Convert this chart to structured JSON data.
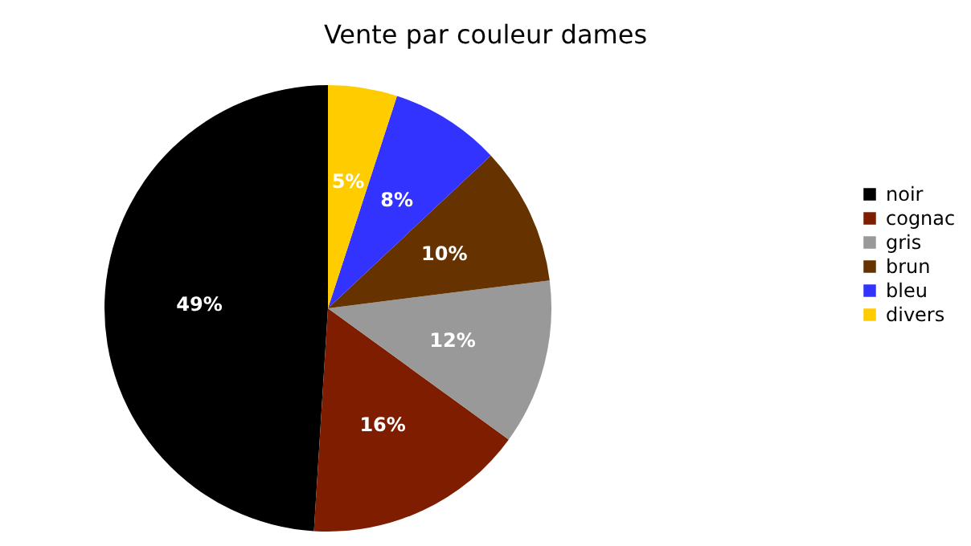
{
  "chart_data": {
    "type": "pie",
    "title": "Vente par couleur dames",
    "categories": [
      "noir",
      "cognac",
      "gris",
      "brun",
      "bleu",
      "divers"
    ],
    "values": [
      49,
      16,
      12,
      10,
      8,
      5
    ],
    "value_labels": [
      "49%",
      "16%",
      "12%",
      "10%",
      "8%",
      "5%"
    ],
    "colors": [
      "#000000",
      "#7f1d00",
      "#999999",
      "#663300",
      "#3333ff",
      "#ffcc00"
    ],
    "legend": "right"
  }
}
